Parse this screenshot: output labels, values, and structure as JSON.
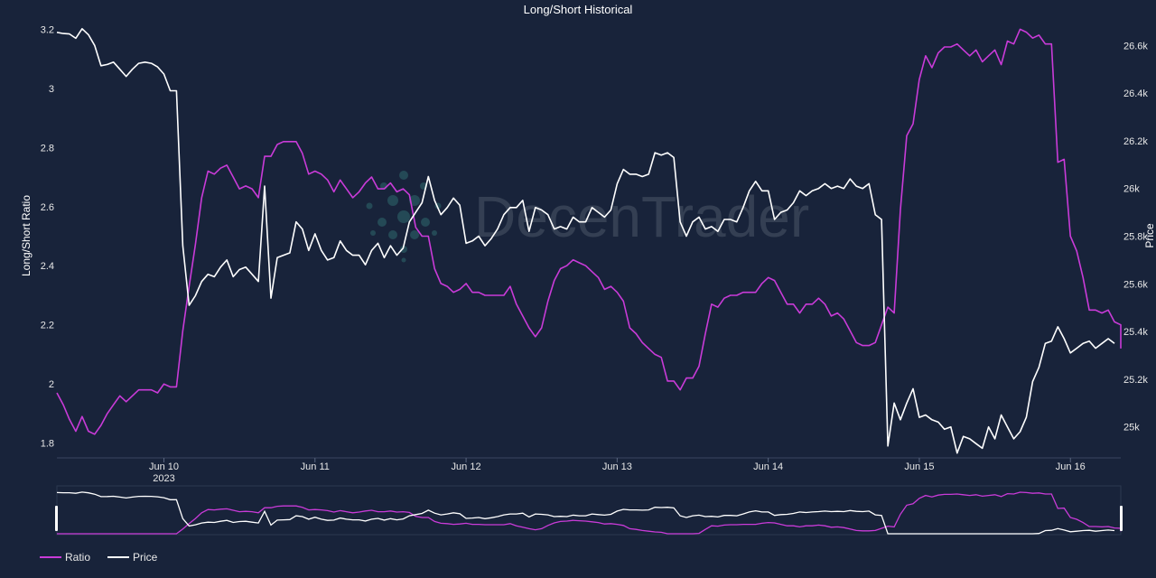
{
  "chart_data": {
    "type": "line",
    "title": "Long/Short Historical",
    "ylabel": "Long/Short Ratio",
    "y2label": "Price",
    "watermark": "DecenTrader",
    "x_ticks": [
      {
        "date": "2023-06-10",
        "label": "Jun 10",
        "sublabel": "2023"
      },
      {
        "date": "2023-06-11",
        "label": "Jun 11",
        "sublabel": ""
      },
      {
        "date": "2023-06-12",
        "label": "Jun 12",
        "sublabel": ""
      },
      {
        "date": "2023-06-13",
        "label": "Jun 13",
        "sublabel": ""
      },
      {
        "date": "2023-06-14",
        "label": "Jun 14",
        "sublabel": ""
      },
      {
        "date": "2023-06-15",
        "label": "Jun 15",
        "sublabel": ""
      },
      {
        "date": "2023-06-16",
        "label": "Jun 16",
        "sublabel": ""
      }
    ],
    "xlim": [
      "2023-06-09 07:00",
      "2023-06-16 08:00"
    ],
    "ylim": [
      1.75,
      3.25
    ],
    "y_ticks": [
      "1.8",
      "2",
      "2.2",
      "2.4",
      "2.6",
      "2.8",
      "3",
      "3.2"
    ],
    "y2lim": [
      24870,
      26730
    ],
    "y2_ticks": [
      {
        "value": 25000,
        "label": "25k"
      },
      {
        "value": 25200,
        "label": "25.2k"
      },
      {
        "value": 25400,
        "label": "25.4k"
      },
      {
        "value": 25600,
        "label": "25.6k"
      },
      {
        "value": 25800,
        "label": "25.8k"
      },
      {
        "value": 26000,
        "label": "26k"
      },
      {
        "value": 26200,
        "label": "26.2k"
      },
      {
        "value": 26400,
        "label": "26.4k"
      },
      {
        "value": 26600,
        "label": "26.6k"
      }
    ],
    "legend_position": "bottom-left",
    "grid": false,
    "x_start": "2023-06-09 07:00",
    "x_step_hours": 1,
    "series": [
      {
        "name": "Ratio",
        "axis": "left",
        "color": "#c93bd8",
        "values": [
          1.97,
          1.93,
          1.88,
          1.84,
          1.89,
          1.84,
          1.83,
          1.86,
          1.9,
          1.93,
          1.96,
          1.94,
          1.96,
          1.98,
          1.98,
          1.98,
          1.97,
          2.0,
          1.99,
          1.99,
          2.18,
          2.33,
          2.47,
          2.63,
          2.72,
          2.71,
          2.73,
          2.74,
          2.7,
          2.66,
          2.67,
          2.66,
          2.63,
          2.77,
          2.77,
          2.81,
          2.82,
          2.82,
          2.82,
          2.78,
          2.71,
          2.72,
          2.71,
          2.69,
          2.65,
          2.69,
          2.66,
          2.63,
          2.65,
          2.68,
          2.7,
          2.66,
          2.66,
          2.68,
          2.65,
          2.66,
          2.64,
          2.53,
          2.5,
          2.5,
          2.39,
          2.34,
          2.33,
          2.31,
          2.32,
          2.34,
          2.31,
          2.31,
          2.3,
          2.3,
          2.3,
          2.3,
          2.33,
          2.27,
          2.23,
          2.19,
          2.16,
          2.19,
          2.28,
          2.35,
          2.39,
          2.4,
          2.42,
          2.41,
          2.4,
          2.38,
          2.36,
          2.32,
          2.33,
          2.31,
          2.28,
          2.19,
          2.17,
          2.14,
          2.12,
          2.1,
          2.09,
          2.01,
          2.01,
          1.98,
          2.02,
          2.02,
          2.06,
          2.17,
          2.27,
          2.26,
          2.29,
          2.3,
          2.3,
          2.31,
          2.31,
          2.31,
          2.34,
          2.36,
          2.35,
          2.31,
          2.27,
          2.27,
          2.24,
          2.27,
          2.27,
          2.29,
          2.27,
          2.23,
          2.24,
          2.22,
          2.18,
          2.14,
          2.13,
          2.13,
          2.14,
          2.2,
          2.26,
          2.24,
          2.59,
          2.84,
          2.88,
          3.03,
          3.11,
          3.07,
          3.12,
          3.14,
          3.14,
          3.15,
          3.13,
          3.11,
          3.13,
          3.09,
          3.11,
          3.13,
          3.08,
          3.16,
          3.15,
          3.2,
          3.19,
          3.17,
          3.18,
          3.15,
          3.15,
          2.75,
          2.76,
          2.5,
          2.45,
          2.36,
          2.25,
          2.25,
          2.24,
          2.25,
          2.21,
          2.2,
          2.17,
          2.14,
          2.12
        ]
      },
      {
        "name": "Price",
        "axis": "right",
        "color": "#ffffff",
        "values": [
          26655,
          26650,
          26648,
          26630,
          26670,
          26645,
          26600,
          26515,
          26520,
          26530,
          26500,
          26470,
          26500,
          26525,
          26530,
          26525,
          26510,
          26480,
          26410,
          26410,
          25760,
          25510,
          25550,
          25610,
          25640,
          25630,
          25670,
          25700,
          25630,
          25660,
          25670,
          25640,
          25610,
          26010,
          25540,
          25710,
          25720,
          25730,
          25860,
          25830,
          25740,
          25810,
          25740,
          25700,
          25710,
          25780,
          25740,
          25720,
          25720,
          25680,
          25740,
          25770,
          25710,
          25760,
          25720,
          25750,
          25860,
          25900,
          25940,
          26050,
          25950,
          25890,
          25920,
          25960,
          25930,
          25770,
          25780,
          25800,
          25760,
          25790,
          25830,
          25890,
          25920,
          25920,
          25950,
          25820,
          25920,
          25910,
          25890,
          25830,
          25840,
          25830,
          25880,
          25860,
          25860,
          25920,
          25900,
          25880,
          25910,
          26020,
          26080,
          26060,
          26060,
          26050,
          26060,
          26150,
          26140,
          26150,
          26130,
          25860,
          25800,
          25860,
          25880,
          25830,
          25840,
          25820,
          25870,
          25870,
          25860,
          25920,
          25990,
          26030,
          25990,
          25990,
          25870,
          25900,
          25910,
          25940,
          25990,
          25970,
          25990,
          26000,
          26020,
          26000,
          26010,
          26000,
          26040,
          26010,
          26000,
          26020,
          25890,
          25870,
          24920,
          25100,
          25030,
          25100,
          25160,
          25040,
          25050,
          25030,
          25020,
          24990,
          25000,
          24890,
          24960,
          24950,
          24930,
          24910,
          25000,
          24950,
          25050,
          25000,
          24950,
          24980,
          25040,
          25190,
          25250,
          25350,
          25360,
          25420,
          25370,
          25310,
          25330,
          25350,
          25360,
          25330,
          25350,
          25370,
          25350
        ]
      }
    ]
  }
}
